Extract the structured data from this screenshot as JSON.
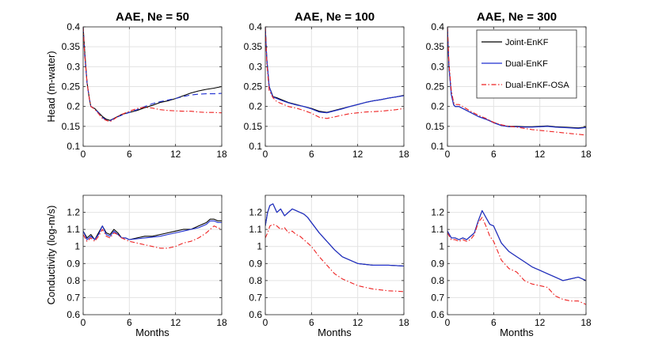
{
  "figure": {
    "background": "#ffffff"
  },
  "chart_data": [
    {
      "type": "line",
      "panel": "top-left",
      "title": "AAE, Ne = 50",
      "xlabel": "",
      "ylabel": "Head (m-water)",
      "xlim": [
        0,
        18
      ],
      "ylim": [
        0.1,
        0.4
      ],
      "xticks": [
        "0",
        "6",
        "12",
        "18"
      ],
      "yticks": [
        "0.1",
        "0.15",
        "0.2",
        "0.25",
        "0.3",
        "0.35",
        "0.4"
      ],
      "grid": true,
      "legend": null,
      "x": [
        0,
        0.2,
        0.5,
        0.8,
        1,
        1.5,
        2,
        2.5,
        3,
        3.5,
        4,
        4.5,
        5,
        6,
        7,
        8,
        9,
        10,
        11,
        12,
        13,
        14,
        15,
        16,
        17,
        18
      ],
      "series": [
        {
          "name": "Joint-EnKF",
          "color": "#000000",
          "dash": "solid",
          "values": [
            0.4,
            0.34,
            0.26,
            0.22,
            0.2,
            0.195,
            0.185,
            0.175,
            0.168,
            0.165,
            0.17,
            0.175,
            0.18,
            0.185,
            0.19,
            0.197,
            0.203,
            0.21,
            0.214,
            0.22,
            0.227,
            0.234,
            0.239,
            0.243,
            0.246,
            0.25
          ]
        },
        {
          "name": "Dual-EnKF",
          "color": "#1f2fd1",
          "dash": "dashed",
          "values": [
            0.4,
            0.33,
            0.26,
            0.22,
            0.2,
            0.194,
            0.184,
            0.172,
            0.166,
            0.164,
            0.17,
            0.174,
            0.178,
            0.185,
            0.192,
            0.2,
            0.207,
            0.212,
            0.216,
            0.22,
            0.225,
            0.229,
            0.231,
            0.232,
            0.232,
            0.233
          ]
        },
        {
          "name": "Dual-EnKF-OSA",
          "color": "#ee2222",
          "dash": "dashdot",
          "values": [
            0.4,
            0.33,
            0.26,
            0.22,
            0.2,
            0.193,
            0.182,
            0.17,
            0.165,
            0.162,
            0.168,
            0.175,
            0.18,
            0.188,
            0.195,
            0.198,
            0.196,
            0.192,
            0.19,
            0.189,
            0.188,
            0.188,
            0.186,
            0.185,
            0.185,
            0.184
          ]
        }
      ]
    },
    {
      "type": "line",
      "panel": "top-middle",
      "title": "AAE, Ne = 100",
      "xlabel": "",
      "ylabel": "",
      "xlim": [
        0,
        18
      ],
      "ylim": [
        0.1,
        0.4
      ],
      "xticks": [
        "0",
        "6",
        "12",
        "18"
      ],
      "yticks": [
        "0.1",
        "0.15",
        "0.2",
        "0.25",
        "0.3",
        "0.35",
        "0.4"
      ],
      "grid": true,
      "legend": null,
      "x": [
        0,
        0.2,
        0.5,
        0.8,
        1,
        1.5,
        2,
        3,
        4,
        5,
        6,
        7,
        8,
        9,
        10,
        11,
        12,
        13,
        14,
        15,
        16,
        17,
        18
      ],
      "series": [
        {
          "name": "Joint-EnKF",
          "color": "#000000",
          "dash": "solid",
          "values": [
            0.4,
            0.32,
            0.25,
            0.235,
            0.225,
            0.222,
            0.218,
            0.21,
            0.205,
            0.2,
            0.195,
            0.188,
            0.185,
            0.19,
            0.195,
            0.2,
            0.205,
            0.21,
            0.214,
            0.217,
            0.221,
            0.224,
            0.228
          ]
        },
        {
          "name": "Dual-EnKF",
          "color": "#1f2fd1",
          "dash": "solid",
          "values": [
            0.4,
            0.32,
            0.25,
            0.233,
            0.224,
            0.22,
            0.216,
            0.209,
            0.204,
            0.2,
            0.194,
            0.186,
            0.184,
            0.189,
            0.194,
            0.2,
            0.205,
            0.21,
            0.214,
            0.217,
            0.221,
            0.224,
            0.227
          ]
        },
        {
          "name": "Dual-EnKF-OSA",
          "color": "#ee2222",
          "dash": "dashdot",
          "values": [
            0.4,
            0.31,
            0.24,
            0.23,
            0.222,
            0.212,
            0.208,
            0.2,
            0.196,
            0.19,
            0.183,
            0.173,
            0.17,
            0.174,
            0.178,
            0.182,
            0.184,
            0.186,
            0.187,
            0.188,
            0.19,
            0.192,
            0.195
          ]
        }
      ]
    },
    {
      "type": "line",
      "panel": "top-right",
      "title": "AAE, Ne = 300",
      "xlabel": "",
      "ylabel": "",
      "xlim": [
        0,
        18
      ],
      "ylim": [
        0.1,
        0.4
      ],
      "xticks": [
        "0",
        "6",
        "12",
        "18"
      ],
      "yticks": [
        "0.1",
        "0.15",
        "0.2",
        "0.25",
        "0.3",
        "0.35",
        "0.4"
      ],
      "grid": true,
      "legend": "top-right",
      "x": [
        0,
        0.2,
        0.5,
        0.8,
        1,
        1.5,
        2,
        3,
        4,
        5,
        6,
        7,
        8,
        9,
        10,
        11,
        12,
        13,
        14,
        15,
        16,
        17,
        18
      ],
      "series": [
        {
          "name": "Joint-EnKF",
          "color": "#000000",
          "dash": "solid",
          "values": [
            0.4,
            0.3,
            0.23,
            0.205,
            0.2,
            0.2,
            0.195,
            0.185,
            0.175,
            0.168,
            0.16,
            0.152,
            0.15,
            0.15,
            0.149,
            0.149,
            0.15,
            0.151,
            0.149,
            0.148,
            0.147,
            0.146,
            0.148
          ]
        },
        {
          "name": "Dual-EnKF",
          "color": "#1f2fd1",
          "dash": "solid",
          "values": [
            0.4,
            0.3,
            0.23,
            0.204,
            0.2,
            0.2,
            0.195,
            0.185,
            0.175,
            0.168,
            0.159,
            0.152,
            0.149,
            0.149,
            0.148,
            0.148,
            0.149,
            0.15,
            0.148,
            0.147,
            0.146,
            0.145,
            0.147
          ]
        },
        {
          "name": "Dual-EnKF-OSA",
          "color": "#ee2222",
          "dash": "dashdot",
          "values": [
            0.4,
            0.31,
            0.24,
            0.21,
            0.205,
            0.205,
            0.2,
            0.188,
            0.178,
            0.17,
            0.16,
            0.154,
            0.15,
            0.148,
            0.145,
            0.142,
            0.14,
            0.138,
            0.136,
            0.134,
            0.132,
            0.13,
            0.128
          ]
        }
      ]
    },
    {
      "type": "line",
      "panel": "bottom-left",
      "title": "",
      "xlabel": "Months",
      "ylabel": "Conductivity (log-m/s)",
      "xlim": [
        0,
        18
      ],
      "ylim": [
        0.6,
        1.3
      ],
      "xticks": [
        "0",
        "6",
        "12",
        "18"
      ],
      "yticks": [
        "0.6",
        "0.7",
        "0.8",
        "0.9",
        "1",
        "1.1",
        "1.2"
      ],
      "grid": true,
      "legend": null,
      "x": [
        0,
        0.5,
        1,
        1.5,
        2,
        2.5,
        3,
        3.5,
        4,
        4.5,
        5,
        5.5,
        6,
        7,
        8,
        9,
        10,
        11,
        12,
        13,
        14,
        15,
        16,
        16.5,
        17,
        17.5,
        18
      ],
      "series": [
        {
          "name": "Joint-EnKF",
          "color": "#000000",
          "dash": "solid",
          "values": [
            1.09,
            1.05,
            1.07,
            1.04,
            1.08,
            1.12,
            1.08,
            1.07,
            1.1,
            1.08,
            1.05,
            1.05,
            1.04,
            1.05,
            1.06,
            1.06,
            1.07,
            1.08,
            1.09,
            1.1,
            1.1,
            1.12,
            1.14,
            1.16,
            1.16,
            1.15,
            1.15
          ]
        },
        {
          "name": "Dual-EnKF",
          "color": "#1f2fd1",
          "dash": "solid",
          "values": [
            1.09,
            1.04,
            1.06,
            1.04,
            1.07,
            1.12,
            1.07,
            1.06,
            1.09,
            1.07,
            1.05,
            1.05,
            1.04,
            1.045,
            1.05,
            1.055,
            1.06,
            1.07,
            1.08,
            1.09,
            1.1,
            1.11,
            1.13,
            1.15,
            1.15,
            1.14,
            1.14
          ]
        },
        {
          "name": "Dual-EnKF-OSA",
          "color": "#ee2222",
          "dash": "dashdot",
          "values": [
            1.07,
            1.03,
            1.05,
            1.03,
            1.06,
            1.1,
            1.06,
            1.05,
            1.08,
            1.07,
            1.05,
            1.04,
            1.03,
            1.02,
            1.01,
            1.0,
            0.99,
            0.99,
            1.0,
            1.02,
            1.03,
            1.05,
            1.08,
            1.1,
            1.12,
            1.11,
            1.1
          ]
        }
      ]
    },
    {
      "type": "line",
      "panel": "bottom-middle",
      "title": "",
      "xlabel": "Months",
      "ylabel": "",
      "xlim": [
        0,
        18
      ],
      "ylim": [
        0.6,
        1.3
      ],
      "xticks": [
        "0",
        "6",
        "12",
        "18"
      ],
      "yticks": [
        "0.6",
        "0.7",
        "0.8",
        "0.9",
        "1",
        "1.1",
        "1.2"
      ],
      "grid": true,
      "legend": null,
      "x": [
        0,
        0.3,
        0.6,
        1,
        1.5,
        2,
        2.5,
        3,
        3.5,
        4,
        4.5,
        5,
        5.5,
        6,
        7,
        8,
        9,
        10,
        11,
        12,
        13,
        14,
        15,
        16,
        17,
        18
      ],
      "series": [
        {
          "name": "Joint-EnKF",
          "color": "#000000",
          "dash": "solid",
          "values": [
            1.12,
            1.2,
            1.24,
            1.25,
            1.2,
            1.22,
            1.18,
            1.2,
            1.22,
            1.21,
            1.2,
            1.19,
            1.17,
            1.14,
            1.08,
            1.03,
            0.98,
            0.94,
            0.92,
            0.9,
            0.895,
            0.89,
            0.89,
            0.89,
            0.888,
            0.885
          ]
        },
        {
          "name": "Dual-EnKF",
          "color": "#1f2fd1",
          "dash": "solid",
          "values": [
            1.12,
            1.2,
            1.24,
            1.25,
            1.2,
            1.22,
            1.18,
            1.2,
            1.22,
            1.21,
            1.2,
            1.19,
            1.17,
            1.14,
            1.08,
            1.03,
            0.98,
            0.94,
            0.92,
            0.9,
            0.895,
            0.89,
            0.89,
            0.89,
            0.888,
            0.885
          ]
        },
        {
          "name": "Dual-EnKF-OSA",
          "color": "#ee2222",
          "dash": "dashdot",
          "values": [
            1.05,
            1.08,
            1.12,
            1.13,
            1.12,
            1.1,
            1.11,
            1.08,
            1.09,
            1.07,
            1.06,
            1.04,
            1.02,
            1.0,
            0.94,
            0.89,
            0.84,
            0.81,
            0.79,
            0.77,
            0.76,
            0.75,
            0.745,
            0.74,
            0.738,
            0.735
          ]
        }
      ]
    },
    {
      "type": "line",
      "panel": "bottom-right",
      "title": "",
      "xlabel": "Months",
      "ylabel": "",
      "xlim": [
        0,
        18
      ],
      "ylim": [
        0.6,
        1.3
      ],
      "xticks": [
        "0",
        "6",
        "12",
        "18"
      ],
      "yticks": [
        "0.6",
        "0.7",
        "0.8",
        "0.9",
        "1",
        "1.1",
        "1.2"
      ],
      "grid": true,
      "legend": null,
      "x": [
        0,
        0.5,
        1,
        1.5,
        2,
        2.5,
        3,
        3.5,
        4,
        4.5,
        5,
        5.5,
        6,
        7,
        8,
        9,
        10,
        11,
        12,
        13,
        14,
        15,
        16,
        17,
        18
      ],
      "series": [
        {
          "name": "Joint-EnKF",
          "color": "#000000",
          "dash": "solid",
          "values": [
            1.09,
            1.05,
            1.05,
            1.04,
            1.05,
            1.04,
            1.06,
            1.08,
            1.15,
            1.21,
            1.17,
            1.13,
            1.12,
            1.02,
            0.97,
            0.94,
            0.91,
            0.88,
            0.86,
            0.84,
            0.82,
            0.8,
            0.81,
            0.82,
            0.8
          ]
        },
        {
          "name": "Dual-EnKF",
          "color": "#1f2fd1",
          "dash": "solid",
          "values": [
            1.09,
            1.05,
            1.05,
            1.04,
            1.05,
            1.04,
            1.06,
            1.08,
            1.15,
            1.21,
            1.17,
            1.13,
            1.12,
            1.02,
            0.97,
            0.94,
            0.91,
            0.88,
            0.86,
            0.84,
            0.82,
            0.8,
            0.81,
            0.82,
            0.8
          ]
        },
        {
          "name": "Dual-EnKF-OSA",
          "color": "#ee2222",
          "dash": "dashdot",
          "values": [
            1.08,
            1.04,
            1.04,
            1.03,
            1.04,
            1.03,
            1.04,
            1.07,
            1.14,
            1.17,
            1.12,
            1.06,
            1.03,
            0.92,
            0.87,
            0.85,
            0.8,
            0.78,
            0.77,
            0.76,
            0.71,
            0.69,
            0.68,
            0.68,
            0.66
          ]
        }
      ]
    }
  ]
}
